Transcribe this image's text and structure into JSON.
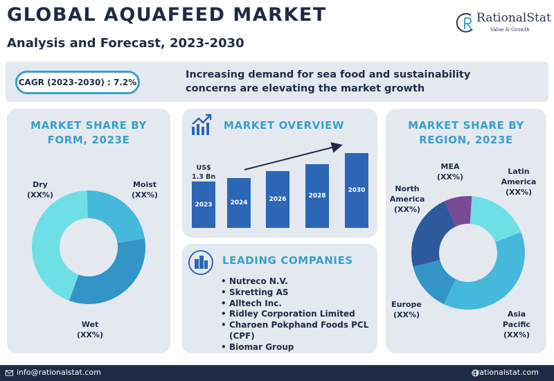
{
  "header": {
    "title": "GLOBAL AQUAFEED MARKET",
    "subtitle": "Analysis and Forecast, 2023-2030"
  },
  "logo": {
    "name": "RationalStat",
    "tagline": "Value & Growth"
  },
  "banner": {
    "cagr": "CAGR (2023-2030) : 7.2%",
    "text": "Increasing demand for sea food and sustainability concerns are elevating the market growth"
  },
  "form_panel": {
    "title": "MARKET SHARE BY FORM, 2023E"
  },
  "overview_panel": {
    "title": "MARKET OVERVIEW",
    "value_label": "US$\n1.3 Bn"
  },
  "companies_panel": {
    "title": "LEADING COMPANIES",
    "items": [
      "Nutreco N.V.",
      "Skretting AS",
      "Alltech Inc.",
      "Ridley Corporation Limited",
      "Charoen Pokphand Foods PCL (CPF)",
      "Biomar Group"
    ]
  },
  "region_panel": {
    "title": "MARKET SHARE BY REGION, 2023E"
  },
  "footer": {
    "email": "info@rationalstat.com",
    "website": "rationalstat.com"
  },
  "colors": {
    "navy": "#1f2a44",
    "accent": "#3a9fc9",
    "panel": "#e4e9f0",
    "bar": "#2c66b5"
  },
  "chart_data": [
    {
      "type": "pie",
      "title": "MARKET SHARE BY FORM, 2023E",
      "categories": [
        "Dry",
        "Moist",
        "Wet"
      ],
      "labels": [
        "Dry\n(XX%)",
        "Moist\n(XX%)",
        "Wet\n(XX%)"
      ],
      "values": [
        44,
        23,
        33
      ],
      "colors": [
        "#6ee0e5",
        "#45b8dc",
        "#3394c7"
      ]
    },
    {
      "type": "bar",
      "title": "MARKET OVERVIEW",
      "categories": [
        "2023",
        "2024",
        "2026",
        "2028",
        "2030"
      ],
      "values": [
        1.3,
        1.4,
        1.6,
        1.8,
        2.1
      ],
      "annotations": [
        "US$ 1.3 Bn"
      ],
      "trend_arrow": true
    },
    {
      "type": "pie",
      "title": "MARKET SHARE BY REGION, 2023E",
      "categories": [
        "MEA",
        "Latin America",
        "Asia Pacific",
        "Europe",
        "North America"
      ],
      "labels": [
        "MEA\n(XX%)",
        "Latin\nAmerica\n(XX%)",
        "Asia\nPacific\n(XX%)",
        "Europe\n(XX%)",
        "North\nAmerica\n(XX%)"
      ],
      "values": [
        8,
        18,
        38,
        14,
        22
      ],
      "colors": [
        "#7a4a95",
        "#6ee0e5",
        "#45b8dc",
        "#3394c7",
        "#2c5a9c"
      ]
    }
  ]
}
